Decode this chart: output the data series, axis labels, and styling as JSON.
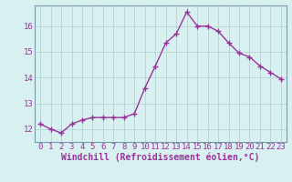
{
  "x": [
    0,
    1,
    2,
    3,
    4,
    5,
    6,
    7,
    8,
    9,
    10,
    11,
    12,
    13,
    14,
    15,
    16,
    17,
    18,
    19,
    20,
    21,
    22,
    23
  ],
  "y": [
    12.2,
    12.0,
    11.85,
    12.2,
    12.35,
    12.45,
    12.45,
    12.45,
    12.45,
    12.6,
    13.6,
    14.45,
    15.35,
    15.7,
    16.55,
    16.0,
    16.0,
    15.8,
    15.35,
    14.95,
    14.8,
    14.45,
    14.2,
    13.95
  ],
  "line_color": "#993399",
  "marker": "+",
  "marker_size": 4,
  "marker_color": "#993399",
  "bg_color": "#d8f0f0",
  "grid_color": "#b8d8d8",
  "xlabel": "Windchill (Refroidissement éolien,°C)",
  "xlabel_color": "#993399",
  "tick_color": "#993399",
  "spine_color": "#7799aa",
  "xlim": [
    -0.5,
    23.5
  ],
  "ylim": [
    11.5,
    16.8
  ],
  "yticks": [
    12,
    13,
    14,
    15,
    16
  ],
  "xticks": [
    0,
    1,
    2,
    3,
    4,
    5,
    6,
    7,
    8,
    9,
    10,
    11,
    12,
    13,
    14,
    15,
    16,
    17,
    18,
    19,
    20,
    21,
    22,
    23
  ],
  "font_size": 6.5,
  "xlabel_fontsize": 7,
  "line_width": 1.0
}
